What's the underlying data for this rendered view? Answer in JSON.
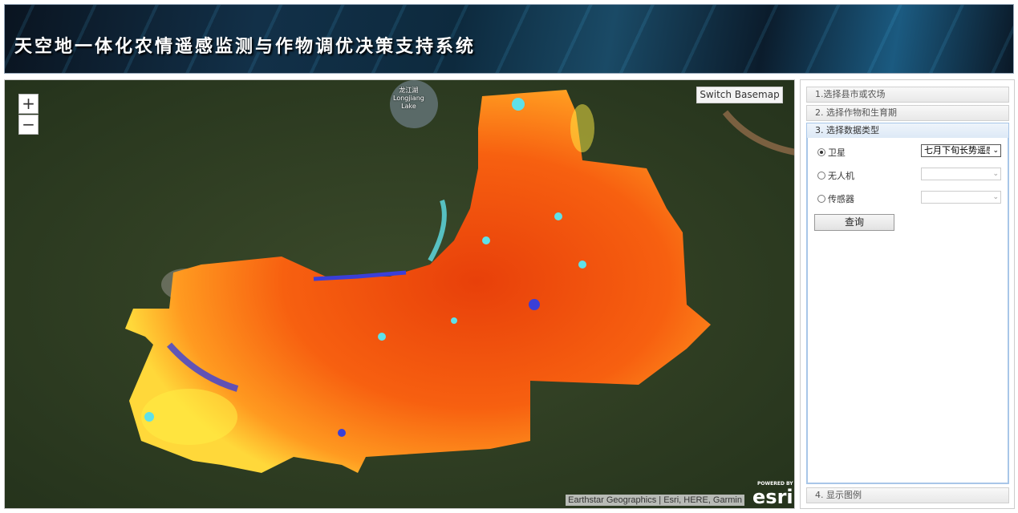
{
  "header": {
    "title": "天空地一体化农情遥感监测与作物调优决策支持系统"
  },
  "map": {
    "zoom_in": "+",
    "zoom_out": "−",
    "switch_basemap": "Switch Basemap",
    "lake_label_cn": "龙江湖",
    "lake_label_en": "Longjiang",
    "lake_label_en2": "Lake",
    "attribution": "Earthstar Geographics | Esri, HERE, Garmin",
    "logo_powered": "POWERED BY",
    "logo_text": "esri",
    "colors": {
      "high": "#e8400a",
      "mid": "#ff8c1a",
      "low": "#ffee44",
      "cyan": "#5fe0e8",
      "blue": "#3a3fd8"
    }
  },
  "panel": {
    "sections": [
      {
        "label": "1.选择县市或农场"
      },
      {
        "label": "2. 选择作物和生育期"
      },
      {
        "label": "3. 选择数据类型"
      },
      {
        "label": "4. 显示图例"
      }
    ],
    "data_types": [
      {
        "label": "卫星",
        "selected": true,
        "select_value": "七月下旬长势遥感"
      },
      {
        "label": "无人机",
        "selected": false,
        "select_value": ""
      },
      {
        "label": "传感器",
        "selected": false,
        "select_value": ""
      }
    ],
    "query_button": "查询"
  }
}
